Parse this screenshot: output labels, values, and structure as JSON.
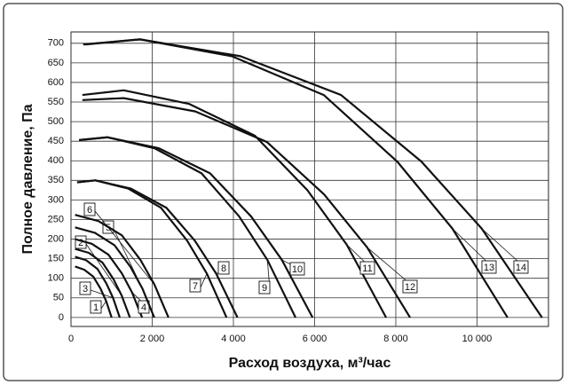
{
  "chart_data": {
    "type": "line",
    "x_label": "Расход воздуха, м³/час",
    "y_label": "Полное давление, Па",
    "xlim": [
      0,
      11760
    ],
    "ylim": [
      -23,
      729
    ],
    "xticks": [
      0,
      {
        "value": 2000,
        "label": "2 000"
      },
      {
        "value": 4000,
        "label": "4 000"
      },
      {
        "value": 6000,
        "label": "6 000"
      },
      {
        "value": 8000,
        "label": "8 000"
      },
      {
        "value": 10000,
        "label": "10 000"
      }
    ],
    "yticks": [
      0,
      50,
      100,
      150,
      200,
      250,
      300,
      350,
      400,
      450,
      500,
      550,
      600,
      650,
      700
    ],
    "grid": true,
    "series": [
      {
        "name": "1",
        "color": "#111111",
        "x": [
          100,
          325,
          550,
          730,
          865,
          1000
        ],
        "values": [
          130,
          122,
          104,
          73,
          42,
          0
        ]
      },
      {
        "name": "2",
        "color": "#111111",
        "x": [
          100,
          438,
          775,
          1045,
          1248,
          1450
        ],
        "values": [
          175,
          165,
          140,
          98,
          56,
          0
        ]
      },
      {
        "name": "3",
        "color": "#111111",
        "x": [
          100,
          375,
          650,
          870,
          1035,
          1200
        ],
        "values": [
          155,
          146,
          124,
          87,
          50,
          0
        ]
      },
      {
        "name": "4",
        "color": "#111111",
        "x": [
          100,
          513,
          925,
          1255,
          1503,
          1750
        ],
        "values": [
          200,
          188,
          160,
          112,
          64,
          0
        ]
      },
      {
        "name": "5",
        "color": "#111111",
        "x": [
          100,
          588,
          1075,
          1465,
          1758,
          2050
        ],
        "values": [
          230,
          216,
          184,
          129,
          74,
          0
        ]
      },
      {
        "name": "6",
        "color": "#111111",
        "x": [
          100,
          675,
          1250,
          1710,
          2055,
          2400
        ],
        "values": [
          262,
          246,
          210,
          147,
          84,
          0
        ]
      },
      {
        "name": "7",
        "color": "#111111",
        "x": [
          150,
          600,
          1408,
          2215,
          2861,
          3346,
          3830
        ],
        "values": [
          345,
          350,
          329,
          280,
          196,
          112,
          0
        ]
      },
      {
        "name": "8",
        "color": "#111111",
        "x": [
          150,
          600,
          1475,
          2350,
          3050,
          3575,
          4100
        ],
        "values": [
          345,
          350,
          329,
          280,
          196,
          112,
          0
        ]
      },
      {
        "name": "9",
        "color": "#111111",
        "x": [
          200,
          900,
          2058,
          3215,
          4141,
          4836,
          5530
        ],
        "values": [
          453,
          460,
          432,
          368,
          258,
          147,
          0
        ]
      },
      {
        "name": "10",
        "color": "#111111",
        "x": [
          200,
          900,
          2163,
          3425,
          4435,
          5193,
          5950
        ],
        "values": [
          453,
          460,
          432,
          368,
          258,
          147,
          0
        ]
      },
      {
        "name": "11",
        "color": "#111111",
        "x": [
          280,
          1300,
          2915,
          4530,
          5822,
          6791,
          7760
        ],
        "values": [
          568,
          580,
          545,
          464,
          325,
          186,
          0
        ]
      },
      {
        "name": "12",
        "color": "#111111",
        "x": [
          280,
          1300,
          3063,
          4825,
          6235,
          7293,
          8350
        ],
        "values": [
          555,
          560,
          526,
          448,
          314,
          179,
          0
        ]
      },
      {
        "name": "13",
        "color": "#111111",
        "x": [
          350,
          1700,
          3963,
          6225,
          8035,
          9393,
          10750
        ],
        "values": [
          697,
          710,
          667,
          568,
          398,
          227,
          0
        ]
      },
      {
        "name": "14",
        "color": "#111111",
        "x": [
          300,
          1700,
          4175,
          6650,
          8630,
          10115,
          11600
        ],
        "values": [
          697,
          710,
          667,
          568,
          398,
          227,
          0
        ]
      }
    ]
  }
}
